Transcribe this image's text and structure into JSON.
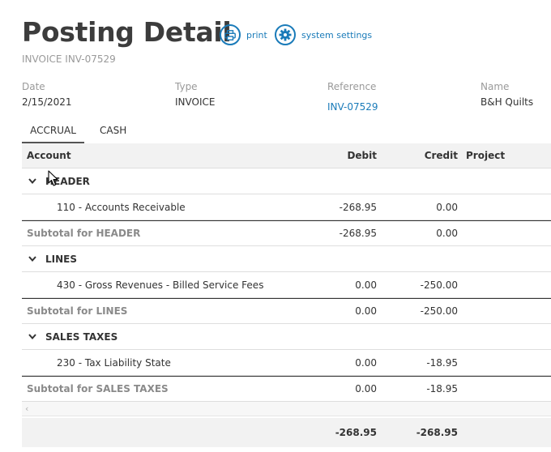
{
  "page": {
    "title": "Posting Detail",
    "subtitle": "INVOICE INV-07529"
  },
  "actions": {
    "print_label": "print",
    "settings_label": "system settings"
  },
  "meta": {
    "date_label": "Date",
    "date_value": "2/15/2021",
    "type_label": "Type",
    "type_value": "INVOICE",
    "reference_label": "Reference",
    "reference_value": "INV-07529",
    "name_label": "Name",
    "name_value": "B&H Quilts"
  },
  "tabs": [
    {
      "label": "ACCRUAL"
    },
    {
      "label": "CASH"
    }
  ],
  "columns": {
    "account": "Account",
    "debit": "Debit",
    "credit": "Credit",
    "project": "Project"
  },
  "groups": [
    {
      "title": "HEADER",
      "line": {
        "account": "110 - Accounts Receivable",
        "debit": "-268.95",
        "credit": "0.00"
      },
      "subtotal": {
        "label": "Subtotal for HEADER",
        "debit": "-268.95",
        "credit": "0.00"
      }
    },
    {
      "title": "LINES",
      "line": {
        "account": "430 - Gross Revenues - Billed Service Fees",
        "debit": "0.00",
        "credit": "-250.00"
      },
      "subtotal": {
        "label": "Subtotal for LINES",
        "debit": "0.00",
        "credit": "-250.00"
      }
    },
    {
      "title": "SALES TAXES",
      "line": {
        "account": "230 - Tax Liability State",
        "debit": "0.00",
        "credit": "-18.95"
      },
      "subtotal": {
        "label": "Subtotal for SALES TAXES",
        "debit": "0.00",
        "credit": "-18.95"
      }
    }
  ],
  "totals": {
    "debit": "-268.95",
    "credit": "-268.95"
  },
  "colors": {
    "accent": "#1a7bb9",
    "header_bg": "#f2f2f2"
  }
}
